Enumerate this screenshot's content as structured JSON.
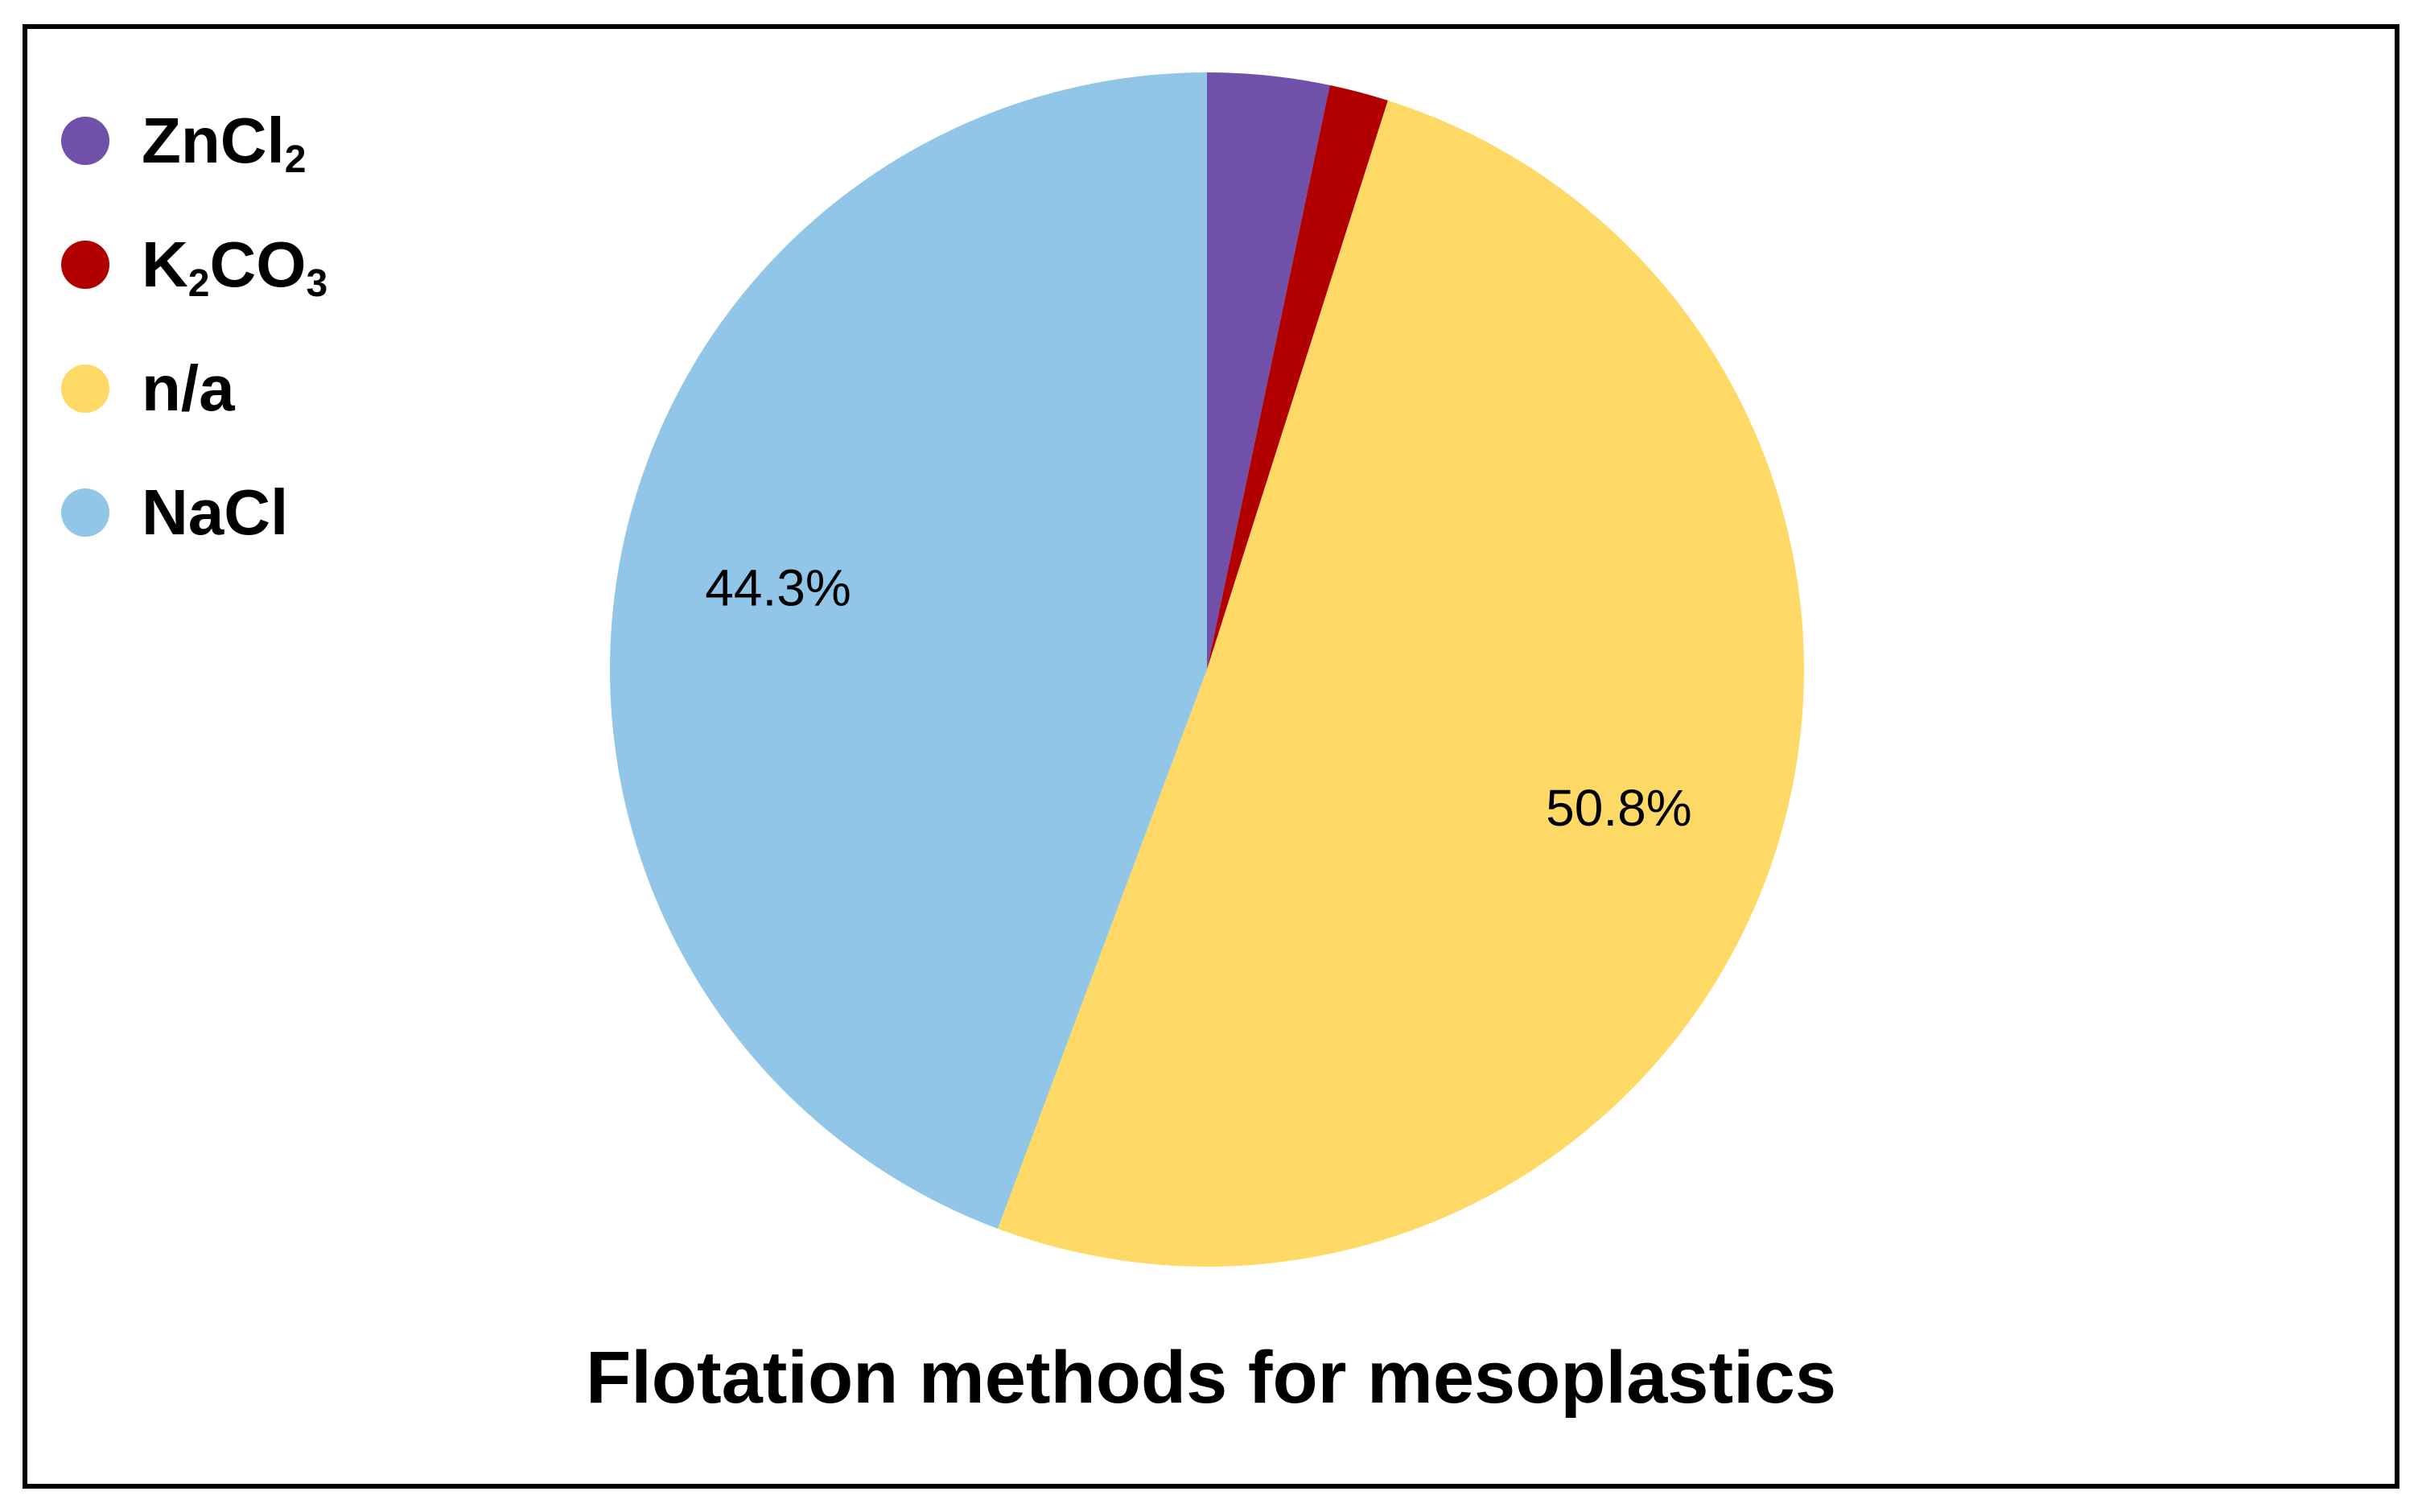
{
  "chart_data": {
    "type": "pie",
    "title": "Flotation methods for mesoplastics",
    "legend_position": "top-left",
    "slices": [
      {
        "label": "ZnCl₂",
        "label_base": "ZnCl",
        "label_sub": "2",
        "label_base2": "",
        "label_sub2": "",
        "value": 3.3,
        "color": "#7050A8",
        "data_label": ""
      },
      {
        "label": "K₂CO₃",
        "label_base": "K",
        "label_sub": "2",
        "label_base2": "CO",
        "label_sub2": "3",
        "value": 1.6,
        "color": "#B20000",
        "data_label": ""
      },
      {
        "label": "n/a",
        "label_base": "n/a",
        "label_sub": "",
        "label_base2": "",
        "label_sub2": "",
        "value": 50.8,
        "color": "#FFD966",
        "data_label": "50.8%"
      },
      {
        "label": "NaCl",
        "label_base": "NaCl",
        "label_sub": "",
        "label_base2": "",
        "label_sub2": "",
        "value": 44.3,
        "color": "#92C6E8",
        "data_label": "44.3%"
      }
    ]
  }
}
